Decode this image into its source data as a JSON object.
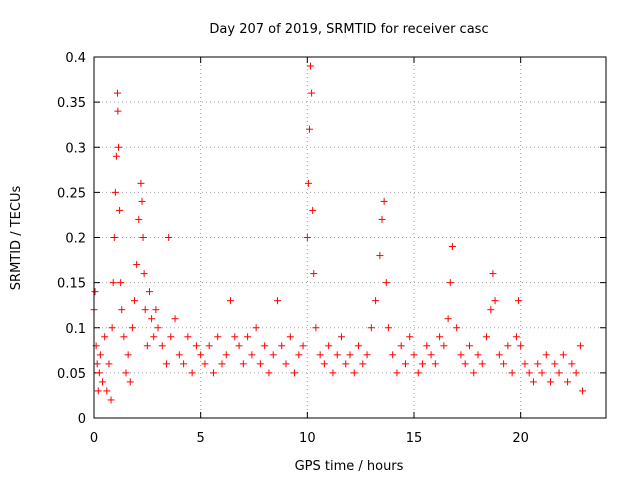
{
  "chart_data": {
    "type": "scatter",
    "title": "Day 207 of 2019, SRMTID for receiver casc",
    "xlabel": "GPS time / hours",
    "ylabel": "SRMTID / TECUs",
    "xlim": [
      0,
      24
    ],
    "ylim": [
      0,
      0.4
    ],
    "x_ticks": [
      0,
      5,
      10,
      15,
      20
    ],
    "x_tick_labels": [
      "0",
      "5",
      "10",
      "15",
      "20"
    ],
    "y_ticks": [
      0,
      0.05,
      0.1,
      0.15,
      0.2,
      0.25,
      0.3,
      0.35,
      0.4
    ],
    "y_tick_labels": [
      "0",
      "0.05",
      "0.1",
      "0.15",
      "0.2",
      "0.25",
      "0.3",
      "0.35",
      "0.4"
    ],
    "grid": true,
    "marker": "+",
    "marker_color": "#ff0000",
    "series": [
      {
        "name": "SRMTID",
        "x": [
          0.0,
          0.05,
          0.1,
          0.15,
          0.2,
          0.25,
          0.3,
          0.4,
          0.5,
          0.6,
          0.7,
          0.8,
          0.85,
          0.9,
          0.95,
          1.0,
          1.05,
          1.1,
          1.12,
          1.15,
          1.2,
          1.25,
          1.3,
          1.4,
          1.5,
          1.6,
          1.7,
          1.8,
          1.9,
          2.0,
          2.1,
          2.2,
          2.25,
          2.3,
          2.35,
          2.4,
          2.5,
          2.6,
          2.7,
          2.8,
          2.9,
          3.0,
          3.2,
          3.4,
          3.5,
          3.6,
          3.8,
          4.0,
          4.2,
          4.4,
          4.6,
          4.8,
          5.0,
          5.2,
          5.4,
          5.6,
          5.8,
          6.0,
          6.2,
          6.4,
          6.6,
          6.8,
          7.0,
          7.2,
          7.4,
          7.6,
          7.8,
          8.0,
          8.2,
          8.4,
          8.6,
          8.8,
          9.0,
          9.2,
          9.4,
          9.6,
          9.8,
          10.0,
          10.05,
          10.1,
          10.15,
          10.2,
          10.25,
          10.3,
          10.4,
          10.6,
          10.8,
          11.0,
          11.2,
          11.4,
          11.6,
          11.8,
          12.0,
          12.2,
          12.4,
          12.6,
          12.8,
          13.0,
          13.2,
          13.4,
          13.5,
          13.6,
          13.7,
          13.8,
          14.0,
          14.2,
          14.4,
          14.6,
          14.8,
          15.0,
          15.2,
          15.4,
          15.6,
          15.8,
          16.0,
          16.2,
          16.4,
          16.6,
          16.7,
          16.8,
          17.0,
          17.2,
          17.4,
          17.6,
          17.8,
          18.0,
          18.2,
          18.4,
          18.6,
          18.7,
          18.8,
          19.0,
          19.2,
          19.4,
          19.6,
          19.8,
          19.9,
          20.0,
          20.2,
          20.4,
          20.6,
          20.8,
          21.0,
          21.2,
          21.4,
          21.6,
          21.8,
          22.0,
          22.2,
          22.4,
          22.6,
          22.8,
          22.9
        ],
        "y": [
          0.12,
          0.14,
          0.08,
          0.06,
          0.03,
          0.05,
          0.07,
          0.04,
          0.09,
          0.03,
          0.06,
          0.02,
          0.1,
          0.15,
          0.2,
          0.25,
          0.29,
          0.36,
          0.34,
          0.3,
          0.23,
          0.15,
          0.12,
          0.09,
          0.05,
          0.07,
          0.04,
          0.1,
          0.13,
          0.17,
          0.22,
          0.26,
          0.24,
          0.2,
          0.16,
          0.12,
          0.08,
          0.14,
          0.11,
          0.09,
          0.12,
          0.1,
          0.08,
          0.06,
          0.2,
          0.09,
          0.11,
          0.07,
          0.06,
          0.09,
          0.05,
          0.08,
          0.07,
          0.06,
          0.08,
          0.05,
          0.09,
          0.06,
          0.07,
          0.13,
          0.09,
          0.08,
          0.06,
          0.09,
          0.07,
          0.1,
          0.06,
          0.08,
          0.05,
          0.07,
          0.13,
          0.08,
          0.06,
          0.09,
          0.05,
          0.07,
          0.08,
          0.2,
          0.26,
          0.32,
          0.39,
          0.36,
          0.23,
          0.16,
          0.1,
          0.07,
          0.06,
          0.08,
          0.05,
          0.07,
          0.09,
          0.06,
          0.07,
          0.05,
          0.08,
          0.06,
          0.07,
          0.1,
          0.13,
          0.18,
          0.22,
          0.24,
          0.15,
          0.1,
          0.07,
          0.05,
          0.08,
          0.06,
          0.09,
          0.07,
          0.05,
          0.06,
          0.08,
          0.07,
          0.06,
          0.09,
          0.08,
          0.11,
          0.15,
          0.19,
          0.1,
          0.07,
          0.06,
          0.08,
          0.05,
          0.07,
          0.06,
          0.09,
          0.12,
          0.16,
          0.13,
          0.07,
          0.06,
          0.08,
          0.05,
          0.09,
          0.13,
          0.08,
          0.06,
          0.05,
          0.04,
          0.06,
          0.05,
          0.07,
          0.04,
          0.06,
          0.05,
          0.07,
          0.04,
          0.06,
          0.05,
          0.08,
          0.03
        ]
      }
    ]
  }
}
